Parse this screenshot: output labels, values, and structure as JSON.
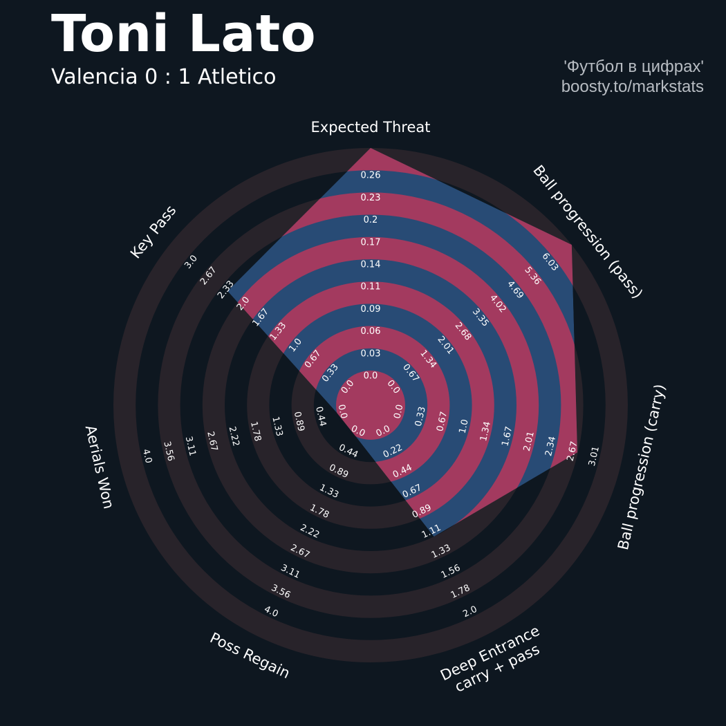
{
  "header": {
    "title": "Toni Lato",
    "subtitle": "Valencia 0 : 1 Atletico",
    "credit_line1": "'Футбол в цифрах'",
    "credit_line2": "boosty.to/markstats"
  },
  "colors": {
    "background": "#0e1720",
    "ring_dark": "#28232a",
    "ring_blank": "#0e1720",
    "ring_pink": "#a33a5f",
    "ring_blue": "#284b75",
    "text": "#ffffff"
  },
  "chart_data": {
    "type": "radar",
    "rings": 10,
    "params": [
      {
        "label": "Expected Threat",
        "value": 0.26,
        "ticks": [
          "0.0",
          "0.03",
          "0.06",
          "0.09",
          "0.11",
          "0.14",
          "0.17",
          "0.2",
          "0.23",
          "0.26"
        ]
      },
      {
        "label": "Ball progression (pass)",
        "value": 6.03,
        "ticks": [
          "0.0",
          "0.67",
          "1.34",
          "2.01",
          "2.68",
          "3.35",
          "4.02",
          "4.69",
          "5.36",
          "6.03"
        ]
      },
      {
        "label": "Ball progression (carry)",
        "value": 2.4,
        "ticks": [
          "0.0",
          "0.33",
          "0.67",
          "1.0",
          "1.34",
          "1.67",
          "2.01",
          "2.34",
          "2.67",
          "3.01"
        ]
      },
      {
        "label": "Deep Entrance\ncarry + pass",
        "value": 1.0,
        "ticks": [
          "0.0",
          "0.22",
          "0.44",
          "0.67",
          "0.89",
          "1.11",
          "1.33",
          "1.56",
          "1.78",
          "2.0"
        ]
      },
      {
        "label": "Poss Regain",
        "value": 0.0,
        "ticks": [
          "0.0",
          "0.44",
          "0.89",
          "1.33",
          "1.78",
          "2.22",
          "2.67",
          "3.11",
          "3.56",
          "4.0"
        ]
      },
      {
        "label": "Aerials Won",
        "value": 0.0,
        "ticks": [
          "0.0",
          "0.44",
          "0.89",
          "1.33",
          "1.78",
          "2.22",
          "2.67",
          "3.11",
          "3.56",
          "4.0"
        ]
      },
      {
        "label": "Key Pass",
        "value": 2.0,
        "ticks": [
          "0.0",
          "0.33",
          "0.67",
          "1.0",
          "1.33",
          "1.67",
          "2.0",
          "2.33",
          "2.67",
          "3.0"
        ]
      }
    ]
  }
}
